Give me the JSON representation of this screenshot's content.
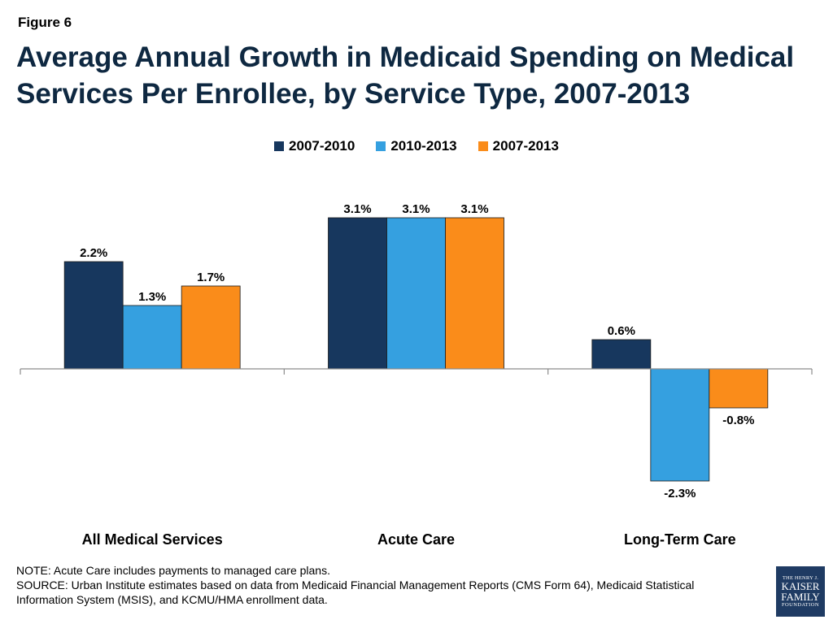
{
  "figure_label": "Figure 6",
  "title": "Average Annual Growth in Medicaid Spending on Medical Services Per Enrollee, by Service Type, 2007-2013",
  "legend": [
    {
      "label": "2007-2010",
      "color": "#17375e"
    },
    {
      "label": "2010-2013",
      "color": "#35a0e0"
    },
    {
      "label": "2007-2013",
      "color": "#fa8c1a"
    }
  ],
  "chart_data": {
    "type": "bar",
    "categories": [
      "All Medical Services",
      "Acute Care",
      "Long-Term Care"
    ],
    "series": [
      {
        "name": "2007-2010",
        "values": [
          2.2,
          3.1,
          0.6
        ],
        "labels": [
          "2.2%",
          "3.1%",
          "0.6%"
        ]
      },
      {
        "name": "2010-2013",
        "values": [
          1.3,
          3.1,
          -2.3
        ],
        "labels": [
          "1.3%",
          "3.1%",
          "-2.3%"
        ]
      },
      {
        "name": "2007-2013",
        "values": [
          1.7,
          3.1,
          -0.8
        ],
        "labels": [
          "1.7%",
          "3.1%",
          "-0.8%"
        ]
      }
    ],
    "ylim": [
      -3.0,
      3.5
    ],
    "grid": false,
    "legend_position": "top"
  },
  "footnotes": {
    "note": "NOTE: Acute Care includes payments to managed care plans.",
    "source": "SOURCE: Urban Institute estimates based on data from Medicaid Financial Management Reports (CMS Form 64), Medicaid Statistical Information System (MSIS), and KCMU/HMA enrollment data."
  },
  "logo": {
    "line1": "THE HENRY J.",
    "line2": "KAISER",
    "line3": "FAMILY",
    "line4": "FOUNDATION"
  }
}
